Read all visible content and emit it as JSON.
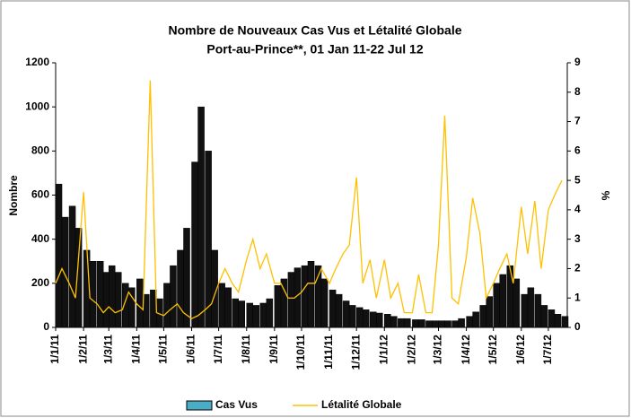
{
  "chart_data": {
    "type": "bar_line",
    "title": "Nombre de Nouveaux Cas Vus et Létalité Globale",
    "subtitle": "Port-au-Prince**, 01 Jan 11-22 Jul 12",
    "ylabel": "Nombre",
    "y2label": "%",
    "xlim": [
      "1/1/11",
      "22/7/12"
    ],
    "xticks": [
      "1/1/11",
      "1/2/11",
      "1/3/11",
      "1/4/11",
      "1/5/11",
      "1/6/11",
      "1/7/11",
      "1/8/11",
      "1/9/11",
      "1/10/11",
      "1/11/11",
      "1/12/11",
      "1/1/12",
      "1/2/12",
      "1/3/12",
      "1/4/12",
      "1/5/12",
      "1/6/12",
      "1/7/12"
    ],
    "ylim": [
      0,
      1200
    ],
    "yticks": [
      0,
      200,
      400,
      600,
      800,
      1000,
      1200
    ],
    "y2lim": [
      0,
      9
    ],
    "y2ticks": [
      0,
      1,
      2,
      3,
      4,
      5,
      6,
      7,
      8,
      9
    ],
    "x": [
      "1/1/11",
      "8/1/11",
      "16/1/11",
      "23/1/11",
      "1/2/11",
      "8/2/11",
      "16/2/11",
      "23/2/11",
      "1/3/11",
      "8/3/11",
      "16/3/11",
      "23/3/11",
      "1/4/11",
      "8/4/11",
      "16/4/11",
      "23/4/11",
      "1/5/11",
      "8/5/11",
      "16/5/11",
      "23/5/11",
      "1/6/11",
      "8/6/11",
      "16/6/11",
      "23/6/11",
      "1/7/11",
      "8/7/11",
      "16/7/11",
      "23/7/11",
      "1/8/11",
      "8/8/11",
      "16/8/11",
      "23/8/11",
      "1/9/11",
      "8/9/11",
      "16/9/11",
      "23/9/11",
      "1/10/11",
      "8/10/11",
      "16/10/11",
      "23/10/11",
      "1/11/11",
      "8/11/11",
      "16/11/11",
      "23/11/11",
      "1/12/11",
      "8/12/11",
      "16/12/11",
      "23/12/11",
      "1/1/12",
      "8/1/12",
      "16/1/12",
      "23/1/12",
      "1/2/12",
      "8/2/12",
      "16/2/12",
      "23/2/12",
      "1/3/12",
      "8/3/12",
      "16/3/12",
      "23/3/12",
      "1/4/12",
      "8/4/12",
      "16/4/12",
      "23/4/12",
      "1/5/12",
      "8/5/12",
      "16/5/12",
      "23/5/12",
      "1/6/12",
      "8/6/12",
      "16/6/12",
      "23/6/12",
      "1/7/12",
      "8/7/12",
      "16/7/12"
    ],
    "series": [
      {
        "name": "Cas Vus",
        "color": "#4bacc6",
        "values": [
          650,
          500,
          550,
          450,
          350,
          300,
          300,
          250,
          280,
          250,
          200,
          180,
          220,
          150,
          170,
          130,
          200,
          280,
          350,
          450,
          750,
          1000,
          800,
          350,
          200,
          180,
          130,
          120,
          110,
          100,
          110,
          130,
          190,
          220,
          250,
          270,
          280,
          300,
          280,
          220,
          170,
          150,
          120,
          100,
          90,
          80,
          70,
          65,
          60,
          50,
          40,
          40,
          35,
          35,
          30,
          30,
          30,
          30,
          30,
          40,
          50,
          70,
          100,
          140,
          200,
          240,
          280,
          220,
          150,
          180,
          150,
          100,
          80,
          60,
          50
        ]
      },
      {
        "name": "Létalité Globale",
        "color": "#ffc000",
        "axis": "y2",
        "values": [
          1.5,
          2,
          1.5,
          1,
          4.6,
          1,
          0.8,
          0.5,
          0.7,
          0.5,
          0.6,
          1.2,
          0.8,
          0.6,
          8.4,
          0.5,
          0.4,
          0.6,
          0.8,
          0.5,
          0.3,
          0.4,
          0.6,
          0.8,
          1.5,
          2,
          1.5,
          1.2,
          2.3,
          3,
          2,
          2.5,
          1.5,
          1.5,
          1,
          1,
          1.2,
          1.5,
          1.5,
          2,
          1.5,
          2,
          2.5,
          2.8,
          5.1,
          1.5,
          2.3,
          1,
          2.3,
          1,
          1.5,
          0.5,
          0.5,
          1.8,
          0.5,
          0.5,
          2.8,
          7.2,
          1,
          0.8,
          2.4,
          4.4,
          3.2,
          1,
          1.5,
          2,
          2.5,
          1.5,
          4.1,
          2.5,
          4.3,
          2,
          4,
          4.5,
          5
        ]
      }
    ]
  }
}
